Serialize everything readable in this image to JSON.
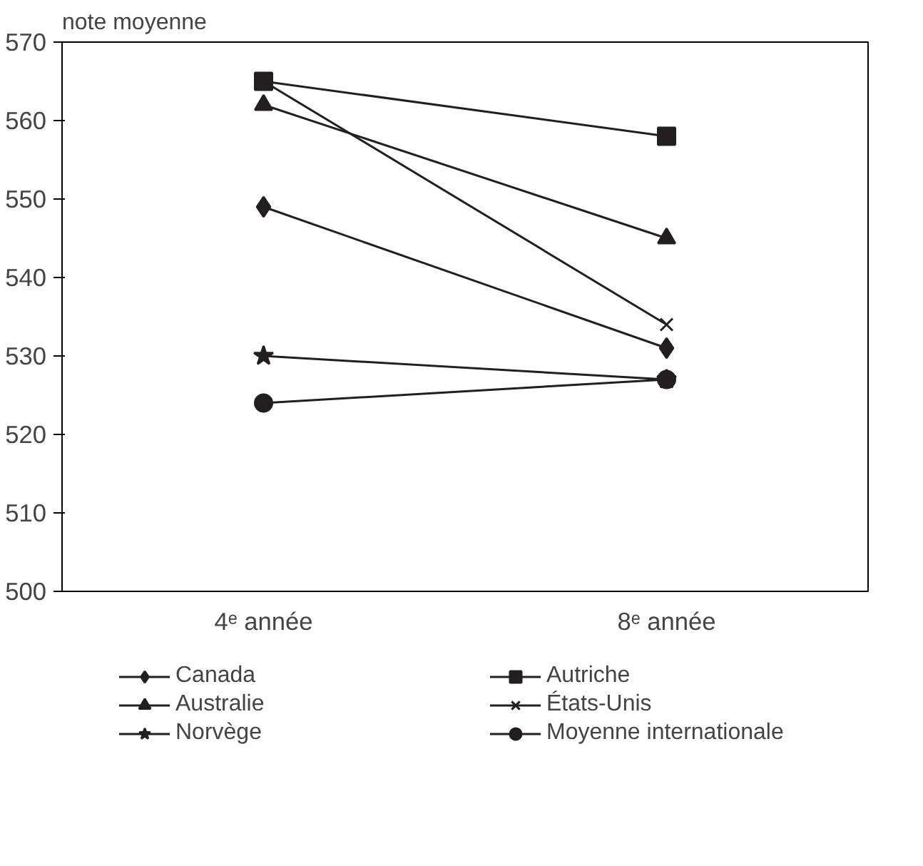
{
  "chart_data": {
    "type": "line",
    "ylabel": "note moyenne",
    "categories": [
      "4ᵉ année",
      "8ᵉ année"
    ],
    "ylim": [
      500,
      570
    ],
    "yticks": [
      500,
      510,
      520,
      530,
      540,
      550,
      560,
      570
    ],
    "grid": false,
    "legend": "bottom",
    "series": [
      {
        "name": "Canada",
        "color": "#231f20",
        "marker": "diamond",
        "values": [
          549,
          531
        ]
      },
      {
        "name": "Autriche",
        "color": "#231f20",
        "marker": "square",
        "values": [
          565,
          558
        ]
      },
      {
        "name": "Australie",
        "color": "#231f20",
        "marker": "triangle",
        "values": [
          562,
          545
        ]
      },
      {
        "name": "États-Unis",
        "color": "#231f20",
        "marker": "cross",
        "values": [
          565,
          534
        ]
      },
      {
        "name": "Norvège",
        "color": "#231f20",
        "marker": "star",
        "values": [
          530,
          527
        ]
      },
      {
        "name": "Moyenne internationale",
        "color": "#231f20",
        "marker": "circle",
        "values": [
          524,
          527
        ]
      }
    ]
  }
}
